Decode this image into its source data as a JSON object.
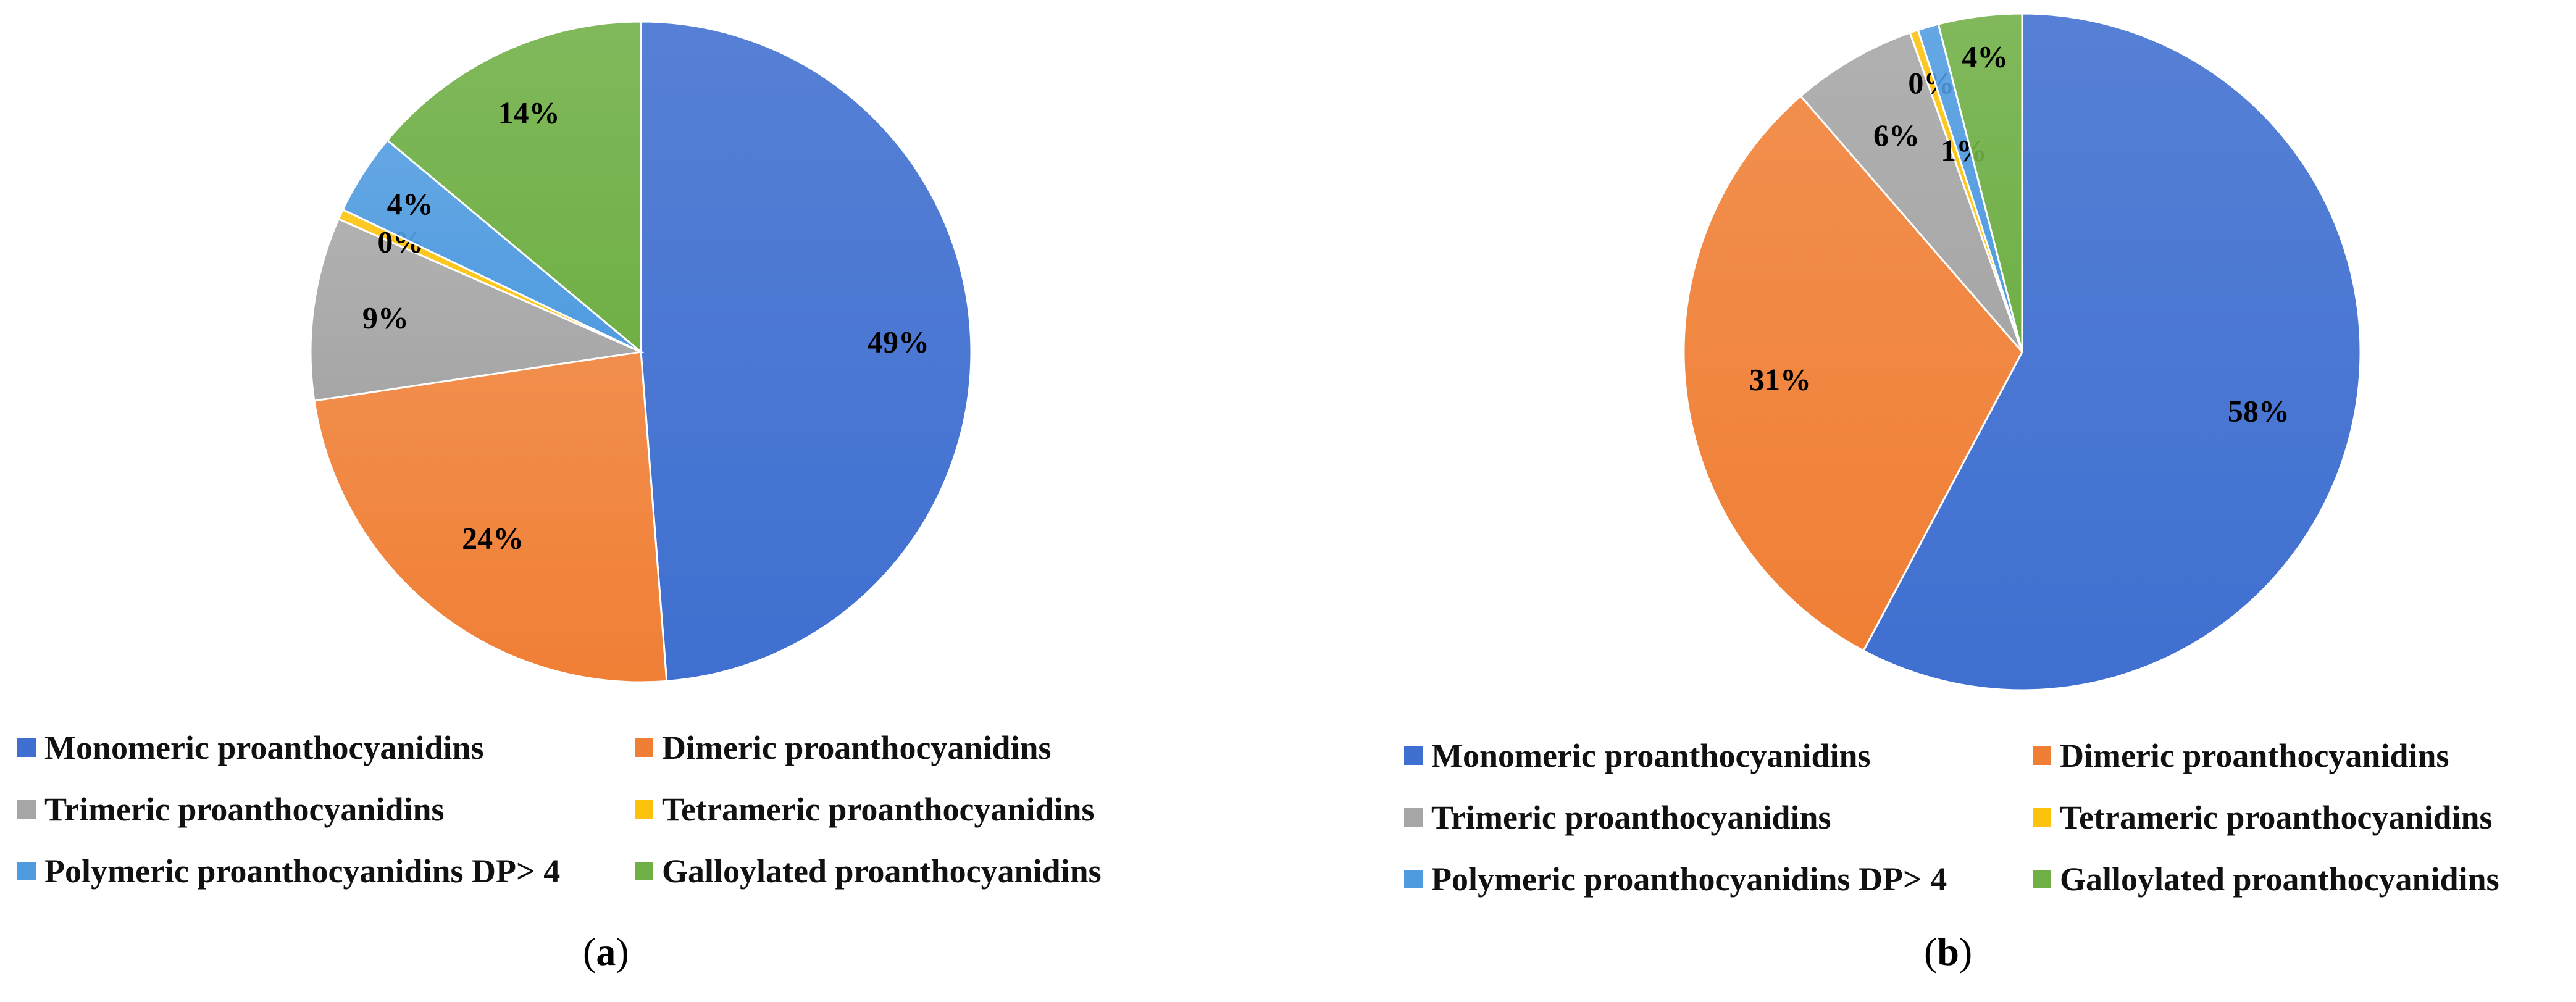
{
  "chart_data": [
    {
      "type": "pie",
      "panel_label": "a",
      "categories": [
        "Monomeric proanthocyanidins",
        "Dimeric proanthocyanidins",
        "Trimeric proanthocyanidins",
        "Tetrameric proanthocyanidins",
        "Polymeric proanthocyanidins DP> 4",
        "Galloylated proanthocyanidins"
      ],
      "values": [
        49,
        24,
        9,
        0.5,
        4,
        14
      ],
      "data_labels": [
        "49%",
        "24%",
        "9%",
        "0%",
        "4%",
        "14%"
      ],
      "colors": [
        "#3f6fd0",
        "#f07f35",
        "#a6a6a6",
        "#fdc20c",
        "#4f9be0",
        "#6faf45"
      ],
      "start_angle_deg": 0,
      "direction": "clockwise",
      "legend_position": "bottom",
      "title": "",
      "xlabel": "",
      "ylabel": ""
    },
    {
      "type": "pie",
      "panel_label": "b",
      "categories": [
        "Monomeric proanthocyanidins",
        "Dimeric proanthocyanidins",
        "Trimeric proanthocyanidins",
        "Tetrameric proanthocyanidins",
        "Polymeric proanthocyanidins DP> 4",
        "Galloylated proanthocyanidins"
      ],
      "values": [
        58,
        31,
        6,
        0.4,
        1,
        4
      ],
      "data_labels": [
        "58%",
        "31%",
        "6%",
        "0%",
        "1%",
        "4%"
      ],
      "colors": [
        "#3f6fd0",
        "#f07f35",
        "#a6a6a6",
        "#fdc20c",
        "#4f9be0",
        "#6faf45"
      ],
      "start_angle_deg": 0,
      "direction": "clockwise",
      "legend_position": "bottom",
      "title": "",
      "xlabel": "",
      "ylabel": ""
    }
  ],
  "captions": [
    {
      "open": "(",
      "letter": "a",
      "close": ")"
    },
    {
      "open": "(",
      "letter": "b",
      "close": ")"
    }
  ]
}
